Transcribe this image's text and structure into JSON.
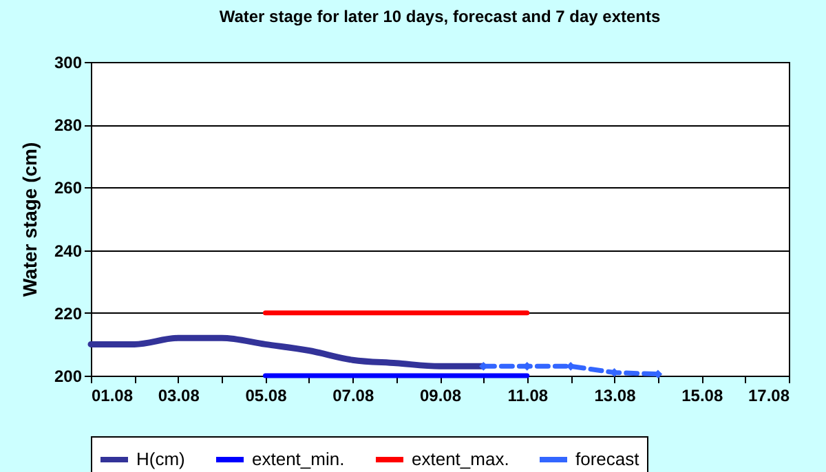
{
  "chart_data": {
    "type": "line",
    "title": "Water stage for later 10 days, forecast and 7 day extents",
    "ylabel": "Water stage (cm)",
    "xlim": [
      "--08-01",
      "--08-17"
    ],
    "xticks": [
      {
        "value": "--08-01",
        "label": "01.08"
      },
      {
        "value": "--08-02",
        "label": null
      },
      {
        "value": "--08-03",
        "label": "03.08"
      },
      {
        "value": "--08-04",
        "label": null
      },
      {
        "value": "--08-05",
        "label": "05.08"
      },
      {
        "value": "--08-06",
        "label": null
      },
      {
        "value": "--08-07",
        "label": "07.08"
      },
      {
        "value": "--08-08",
        "label": null
      },
      {
        "value": "--08-09",
        "label": "09.08"
      },
      {
        "value": "--08-10",
        "label": null
      },
      {
        "value": "--08-11",
        "label": "11.08"
      },
      {
        "value": "--08-12",
        "label": null
      },
      {
        "value": "--08-13",
        "label": "13.08"
      },
      {
        "value": "--08-14",
        "label": null
      },
      {
        "value": "--08-15",
        "label": "15.08"
      },
      {
        "value": "--08-16",
        "label": null
      },
      {
        "value": "--08-17",
        "label": "17.08"
      }
    ],
    "ylim": [
      200,
      300
    ],
    "yticks": [
      200,
      220,
      240,
      260,
      280,
      300
    ],
    "grid": "y",
    "legend": "bottom",
    "series": [
      {
        "name": "H(cm)",
        "color": "#333399",
        "x": [
          "--08-01",
          "--08-02",
          "--08-03",
          "--08-04",
          "--08-05",
          "--08-06",
          "--08-07",
          "--08-08",
          "--08-09",
          "--08-10"
        ],
        "values": [
          210,
          210,
          212,
          212,
          210,
          208,
          205,
          204,
          203,
          203
        ],
        "marker": "none",
        "line_style": "solid"
      },
      {
        "name": "extent_min.",
        "color": "#0000ff",
        "x": [
          "--08-05",
          "--08-11"
        ],
        "values": [
          200,
          200
        ],
        "marker": "none",
        "line_style": "solid"
      },
      {
        "name": "extent_max.",
        "color": "#ff0000",
        "x": [
          "--08-05",
          "--08-11"
        ],
        "values": [
          220,
          220
        ],
        "marker": "none",
        "line_style": "solid"
      },
      {
        "name": "forecast",
        "color": "#3366ff",
        "x": [
          "--08-10",
          "--08-11",
          "--08-12",
          "--08-13",
          "--08-14"
        ],
        "values": [
          203,
          203,
          203,
          201,
          200.5
        ],
        "marker": "diamond",
        "line_style": "dashed"
      }
    ]
  }
}
